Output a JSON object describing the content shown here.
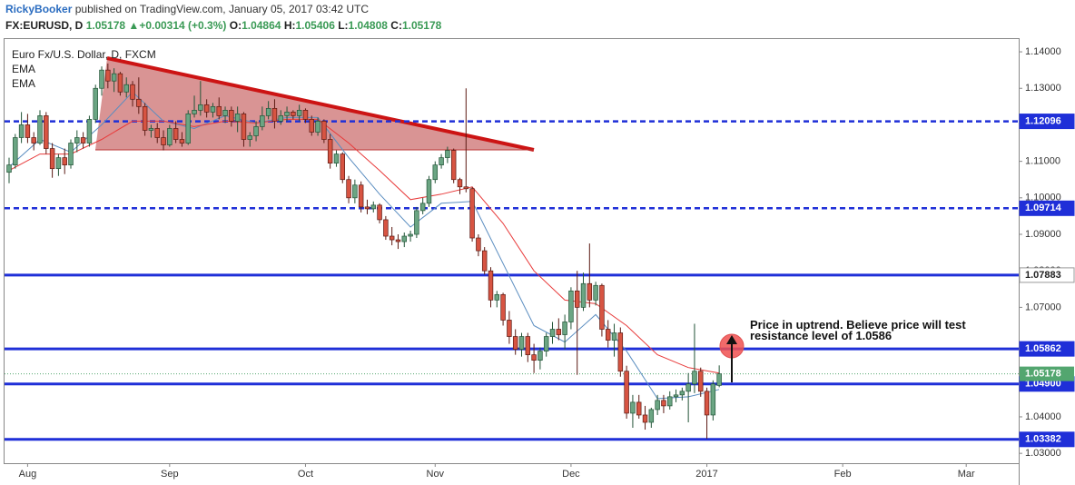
{
  "header": {
    "author": "RickyBooker",
    "published": "published on TradingView.com, January 05, 2017 03:42 UTC",
    "symbol": "FX:EURUSD, D",
    "last": "1.05178",
    "change": "+0.00314 (+0.3%)",
    "open_label": "O:",
    "open": "1.04864",
    "high_label": "H:",
    "high": "1.05406",
    "low_label": "L:",
    "low": "1.04808",
    "close_label": "C:",
    "close": "1.05178"
  },
  "chart_data": {
    "type": "candlestick",
    "title": "Euro Fx/U.S. Dollar, D, FXCM",
    "up_color": "#6ba583",
    "down_color": "#d75442",
    "grid": false,
    "candles": {
      "open": [
        1.107,
        1.109,
        1.1165,
        1.12,
        1.1165,
        1.115,
        1.1225,
        1.1135,
        1.108,
        1.111,
        1.109,
        1.115,
        1.1165,
        1.115,
        1.1215,
        1.13,
        1.135,
        1.132,
        1.134,
        1.129,
        1.131,
        1.127,
        1.125,
        1.1185,
        1.119,
        1.1165,
        1.1145,
        1.119,
        1.116,
        1.115,
        1.123,
        1.124,
        1.1255,
        1.1235,
        1.125,
        1.1225,
        1.124,
        1.121,
        1.123,
        1.116,
        1.117,
        1.1195,
        1.1225,
        1.1245,
        1.121,
        1.1225,
        1.1235,
        1.1225,
        1.124,
        1.1215,
        1.118,
        1.121,
        1.116,
        1.1095,
        1.112,
        1.105,
        1.1,
        1.1035,
        1.0975,
        1.097,
        1.098,
        1.094,
        1.0895,
        1.0885,
        1.088,
        1.0895,
        1.09,
        1.0965,
        1.0985,
        1.105,
        1.109,
        1.111,
        1.113,
        1.105,
        1.103,
        1.1025,
        1.089,
        1.0855,
        1.08,
        1.072,
        1.0735,
        1.0665,
        1.062,
        1.0585,
        1.062,
        1.057,
        1.0555,
        1.058,
        1.062,
        1.064,
        1.0625,
        1.066,
        1.0745,
        1.07,
        1.0765,
        1.072,
        1.076,
        1.064,
        1.061,
        1.063,
        1.0525,
        1.041,
        1.044,
        1.0405,
        1.0385,
        1.042,
        1.0445,
        1.043,
        1.0455,
        1.046,
        1.047,
        1.049,
        1.0525,
        1.047,
        1.0405,
        1.0486
      ],
      "high": [
        1.111,
        1.1175,
        1.1235,
        1.123,
        1.118,
        1.124,
        1.1235,
        1.115,
        1.112,
        1.1135,
        1.116,
        1.1185,
        1.118,
        1.1225,
        1.131,
        1.136,
        1.1368,
        1.1355,
        1.1345,
        1.133,
        1.132,
        1.133,
        1.126,
        1.12,
        1.1205,
        1.1185,
        1.12,
        1.121,
        1.118,
        1.124,
        1.128,
        1.132,
        1.127,
        1.126,
        1.1275,
        1.125,
        1.125,
        1.125,
        1.1235,
        1.118,
        1.121,
        1.125,
        1.1265,
        1.127,
        1.124,
        1.125,
        1.124,
        1.1255,
        1.1245,
        1.1225,
        1.122,
        1.1215,
        1.1175,
        1.113,
        1.1125,
        1.106,
        1.105,
        1.1045,
        1.0995,
        1.099,
        1.0985,
        1.095,
        1.092,
        1.09,
        1.0905,
        1.091,
        1.0975,
        1.1,
        1.106,
        1.11,
        1.112,
        1.114,
        1.1135,
        1.1055,
        1.13,
        1.103,
        1.09,
        1.0865,
        1.081,
        1.0745,
        1.074,
        1.069,
        1.064,
        1.063,
        1.063,
        1.06,
        1.059,
        1.063,
        1.066,
        1.067,
        1.068,
        1.0755,
        1.08,
        1.0795,
        1.0875,
        1.077,
        1.0765,
        1.0665,
        1.0655,
        1.0645,
        1.054,
        1.046,
        1.046,
        1.043,
        1.0425,
        1.046,
        1.046,
        1.047,
        1.0475,
        1.048,
        1.052,
        1.0655,
        1.0535,
        1.048,
        1.05,
        1.0541
      ],
      "low": [
        1.104,
        1.108,
        1.115,
        1.115,
        1.113,
        1.1145,
        1.112,
        1.1055,
        1.106,
        1.1065,
        1.108,
        1.1125,
        1.1135,
        1.114,
        1.1205,
        1.128,
        1.13,
        1.129,
        1.128,
        1.1275,
        1.125,
        1.123,
        1.117,
        1.1165,
        1.115,
        1.113,
        1.114,
        1.115,
        1.114,
        1.1145,
        1.122,
        1.1225,
        1.122,
        1.122,
        1.1215,
        1.1205,
        1.1195,
        1.118,
        1.114,
        1.114,
        1.1155,
        1.1185,
        1.1215,
        1.119,
        1.12,
        1.121,
        1.1215,
        1.121,
        1.1205,
        1.117,
        1.117,
        1.115,
        1.108,
        1.1085,
        1.104,
        1.0985,
        1.0985,
        1.096,
        1.0955,
        1.096,
        1.093,
        1.0885,
        1.087,
        1.086,
        1.0865,
        1.088,
        1.089,
        1.0955,
        1.0975,
        1.104,
        1.108,
        1.1095,
        1.104,
        1.101,
        1.1015,
        1.088,
        1.084,
        1.079,
        1.07,
        1.07,
        1.065,
        1.06,
        1.057,
        1.0565,
        1.055,
        1.052,
        1.053,
        1.0565,
        1.06,
        1.061,
        1.0585,
        1.064,
        1.0515,
        1.069,
        1.07,
        1.0705,
        1.062,
        1.059,
        1.0565,
        1.051,
        1.0395,
        1.037,
        1.0395,
        1.0365,
        1.037,
        1.0405,
        1.041,
        1.042,
        1.044,
        1.0445,
        1.0385,
        1.0465,
        1.0455,
        1.034,
        1.039,
        1.0481
      ],
      "close": [
        1.109,
        1.1165,
        1.12,
        1.1165,
        1.115,
        1.1225,
        1.1135,
        1.108,
        1.111,
        1.109,
        1.115,
        1.1165,
        1.115,
        1.1215,
        1.13,
        1.135,
        1.132,
        1.134,
        1.129,
        1.131,
        1.127,
        1.125,
        1.1185,
        1.119,
        1.1165,
        1.1145,
        1.119,
        1.116,
        1.115,
        1.123,
        1.124,
        1.1255,
        1.1235,
        1.125,
        1.1225,
        1.124,
        1.121,
        1.123,
        1.116,
        1.117,
        1.1195,
        1.1225,
        1.1245,
        1.121,
        1.1225,
        1.1235,
        1.1225,
        1.124,
        1.1215,
        1.118,
        1.121,
        1.116,
        1.1095,
        1.112,
        1.105,
        1.1,
        1.1035,
        1.0975,
        1.097,
        1.098,
        1.094,
        1.0895,
        1.0885,
        1.088,
        1.0895,
        1.09,
        1.0965,
        1.0985,
        1.105,
        1.109,
        1.111,
        1.113,
        1.105,
        1.103,
        1.1025,
        1.089,
        1.0855,
        1.08,
        1.072,
        1.0735,
        1.0665,
        1.062,
        1.0585,
        1.062,
        1.057,
        1.0555,
        1.058,
        1.062,
        1.064,
        1.0625,
        1.066,
        1.0745,
        1.07,
        1.0765,
        1.072,
        1.076,
        1.064,
        1.061,
        1.063,
        1.0525,
        1.041,
        1.044,
        1.0405,
        1.0385,
        1.042,
        1.0445,
        1.043,
        1.0455,
        1.046,
        1.047,
        1.049,
        1.0525,
        1.047,
        1.0405,
        1.049,
        1.05178
      ]
    },
    "indicators": [
      {
        "name": "EMA",
        "color": "#5a8dc0",
        "x": [
          0,
          5,
          10,
          15,
          20,
          25,
          30,
          35,
          40,
          45,
          50,
          55,
          60,
          65,
          70,
          75,
          80,
          85,
          90,
          95,
          100,
          105,
          110,
          115
        ],
        "values": [
          1.1085,
          1.116,
          1.1125,
          1.12,
          1.129,
          1.121,
          1.119,
          1.1225,
          1.1205,
          1.122,
          1.122,
          1.111,
          1.101,
          1.092,
          1.0985,
          1.099,
          1.082,
          1.065,
          1.0605,
          1.068,
          1.058,
          1.045,
          1.0455,
          1.0475
        ]
      },
      {
        "name": "EMA",
        "color": "#e83a3a",
        "x": [
          0,
          5,
          10,
          15,
          20,
          25,
          30,
          35,
          40,
          45,
          50,
          55,
          60,
          65,
          70,
          75,
          80,
          85,
          90,
          95,
          100,
          105,
          110,
          115
        ],
        "values": [
          1.1075,
          1.112,
          1.112,
          1.116,
          1.121,
          1.121,
          1.1195,
          1.121,
          1.1205,
          1.1215,
          1.1215,
          1.115,
          1.1075,
          1.0995,
          1.101,
          1.103,
          1.093,
          1.08,
          1.072,
          1.071,
          1.065,
          1.057,
          1.0535,
          1.052
        ]
      }
    ],
    "levels": [
      {
        "value": 1.12096,
        "label": "1.12096",
        "style": "dashed",
        "highlight": true
      },
      {
        "value": 1.09714,
        "label": "1.09714",
        "style": "dashed",
        "highlight": true
      },
      {
        "value": 1.07883,
        "label": "1.07883",
        "style": "solid",
        "highlight": false
      },
      {
        "value": 1.05862,
        "label": "1.05862",
        "style": "solid",
        "highlight": true
      },
      {
        "value": 1.049,
        "label": "1.04900",
        "style": "solid",
        "highlight": true
      },
      {
        "value": 1.03382,
        "label": "1.03382",
        "style": "solid",
        "highlight": true
      }
    ],
    "level_color": "#1f2fd8",
    "last_price": {
      "value": 1.05178,
      "label": "1.05178",
      "color": "#53a66f"
    },
    "annotation": "Price in uptrend. Believe price will test resistance level of 1.0586",
    "xlim": [
      -0.735,
      163.5
    ],
    "xticks": [
      {
        "value": 3,
        "label": "Aug"
      },
      {
        "value": 26,
        "label": "Sep"
      },
      {
        "value": 48,
        "label": "Oct"
      },
      {
        "value": 69,
        "label": "Nov"
      },
      {
        "value": 91,
        "label": "Dec"
      },
      {
        "value": 113,
        "label": "2017"
      },
      {
        "value": 135,
        "label": "Feb"
      },
      {
        "value": 155,
        "label": "Mar"
      }
    ],
    "ylim": [
      1.0273,
      1.143
    ],
    "yticks": [
      {
        "value": 1.14,
        "label": "1.14000"
      },
      {
        "value": 1.13,
        "label": "1.13000"
      },
      {
        "value": 1.11,
        "label": "1.11000"
      },
      {
        "value": 1.1,
        "label": "1.10000"
      },
      {
        "value": 1.09,
        "label": "1.09000"
      },
      {
        "value": 1.08,
        "label": "1.08000"
      },
      {
        "value": 1.07,
        "label": "1.07000"
      },
      {
        "value": 1.04,
        "label": "1.04000"
      },
      {
        "value": 1.03,
        "label": "1.03000"
      }
    ]
  }
}
